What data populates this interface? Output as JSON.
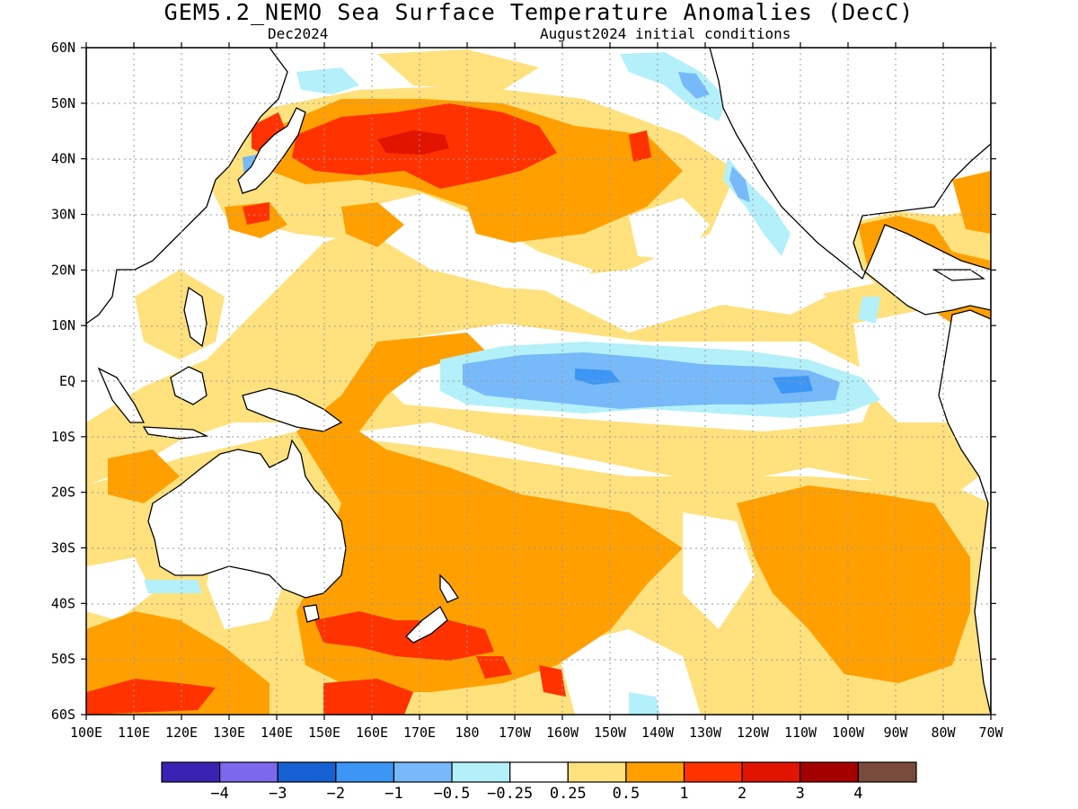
{
  "title": "GEM5.2_NEMO Sea Surface Temperature Anomalies (DecC)",
  "subtitle_left": "Dec2024",
  "subtitle_right": "August2024 initial conditions",
  "lat_labels": [
    "60N",
    "50N",
    "40N",
    "30N",
    "20N",
    "10N",
    "EQ",
    "10S",
    "20S",
    "30S",
    "40S",
    "50S",
    "60S"
  ],
  "lon_labels": [
    "100E",
    "110E",
    "120E",
    "130E",
    "140E",
    "150E",
    "160E",
    "170E",
    "180",
    "170W",
    "160W",
    "150W",
    "140W",
    "130W",
    "120W",
    "110W",
    "100W",
    "90W",
    "80W",
    "70W"
  ],
  "colorbar": {
    "colors": [
      "#3a22b4",
      "#7b68ee",
      "#1560d3",
      "#3c96f5",
      "#78b9fa",
      "#b4f0fa",
      "#ffffff",
      "#ffe17d",
      "#ffa000",
      "#ff3200",
      "#e11400",
      "#a50000",
      "#784b3c"
    ],
    "labels": [
      "-4",
      "-3",
      "-2",
      "-1",
      "-0.5",
      "-0.25",
      "0.25",
      "0.5",
      "1",
      "2",
      "3",
      "4"
    ]
  },
  "chart_data": {
    "type": "heatmap",
    "variable": "Sea Surface Temperature Anomalies",
    "units": "DecC",
    "lat_range": [
      -60,
      60
    ],
    "lon_range": [
      100,
      290
    ],
    "grid": true,
    "levels": [
      -4,
      -3,
      -2,
      -1,
      -0.5,
      -0.25,
      0.25,
      0.5,
      1,
      2,
      3,
      4
    ],
    "regions": [
      {
        "name": "equatorial-cold-tongue",
        "lat": [
          -5,
          3
        ],
        "lon": [
          180,
          275
        ],
        "category": "-1 to -0.5"
      },
      {
        "name": "central-equatorial-core",
        "lat": [
          -3,
          2
        ],
        "lon": [
          195,
          210
        ],
        "category": "-1 to -0.5"
      },
      {
        "name": "north-pacific-warm-blob",
        "lat": [
          32,
          48
        ],
        "lon": [
          150,
          215
        ],
        "category": "1 to 2"
      },
      {
        "name": "north-pacific-peak",
        "lat": [
          40,
          43
        ],
        "lon": [
          168,
          176
        ],
        "category": "2 to 3"
      },
      {
        "name": "japan-sea-warm",
        "lat": [
          36,
          46
        ],
        "lon": [
          130,
          145
        ],
        "category": "1 to 2"
      },
      {
        "name": "southwest-pacific-warm",
        "lat": [
          -45,
          -5
        ],
        "lon": [
          150,
          220
        ],
        "category": "0.5 to 1"
      },
      {
        "name": "southeast-pacific-warm",
        "lat": [
          -50,
          -20
        ],
        "lon": [
          230,
          285
        ],
        "category": "0.5 to 1"
      },
      {
        "name": "tasman-new-zealand-warm",
        "lat": [
          -50,
          -42
        ],
        "lon": [
          150,
          180
        ],
        "category": "1 to 2"
      },
      {
        "name": "southern-ocean-warm",
        "lat": [
          -60,
          -52
        ],
        "lon": [
          100,
          130
        ],
        "category": "1 to 2"
      },
      {
        "name": "gulf-of-mexico-caribbean-warm",
        "lat": [
          10,
          30
        ],
        "lon": [
          262,
          290
        ],
        "category": "0.5 to 1"
      },
      {
        "name": "california-coast-cool",
        "lat": [
          22,
          50
        ],
        "lon": [
          230,
          245
        ],
        "category": "-0.5 to -0.25"
      },
      {
        "name": "gulf-of-alaska-cool",
        "lat": [
          52,
          60
        ],
        "lon": [
          195,
          230
        ],
        "category": "-0.5 to -0.25"
      }
    ]
  }
}
